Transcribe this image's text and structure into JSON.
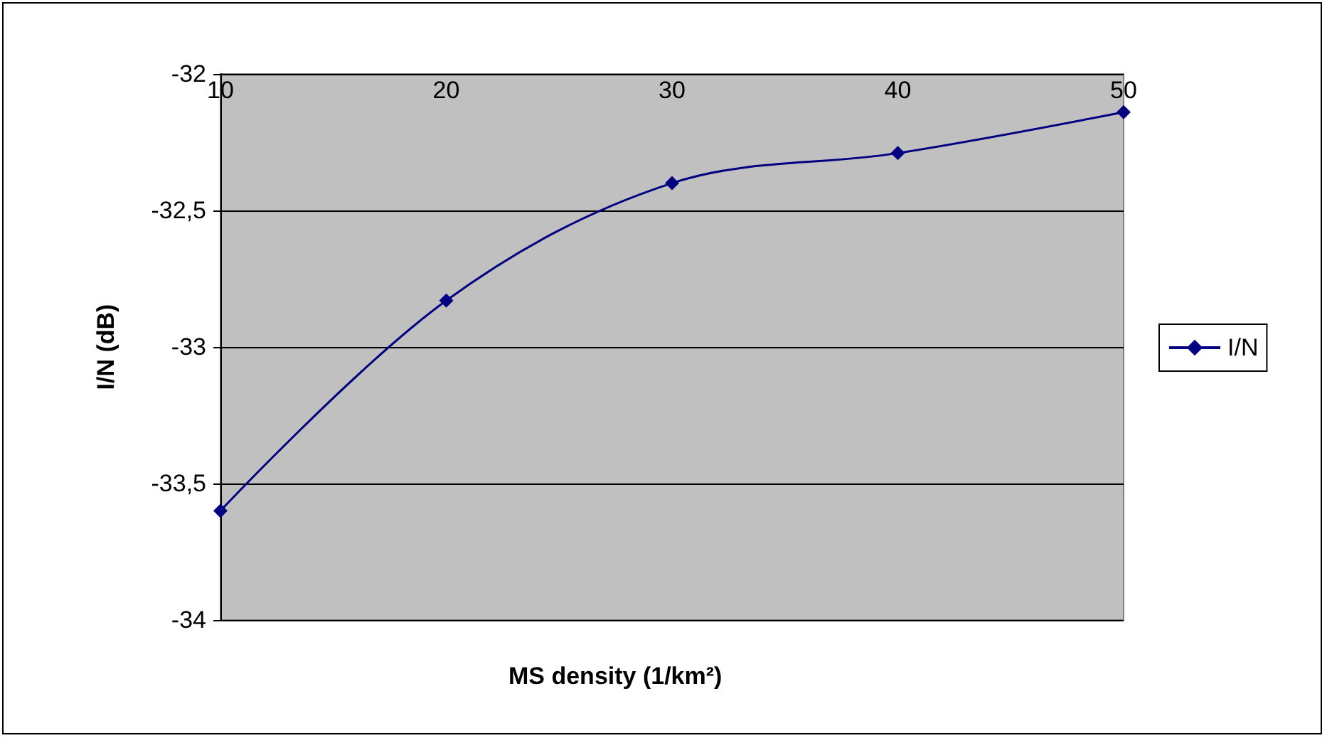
{
  "chart_data": {
    "type": "line",
    "xlabel": "MS density (1/km²)",
    "ylabel": "I/N (dB)",
    "categories": [
      "10",
      "20",
      "30",
      "40",
      "50"
    ],
    "series": [
      {
        "name": "I/N",
        "color": "#000080",
        "values": [
          -33.6,
          -32.83,
          -32.4,
          -32.29,
          -32.14
        ]
      }
    ],
    "ylim": [
      -34,
      -32
    ],
    "yticks": [
      -34,
      {
        "value": -33.5,
        "label": "-33,5"
      },
      -33,
      {
        "value": -32.5,
        "label": "-32,5"
      },
      -32
    ],
    "grid": "y",
    "legend": "right",
    "marker": "diamond",
    "line_style": "solid"
  }
}
